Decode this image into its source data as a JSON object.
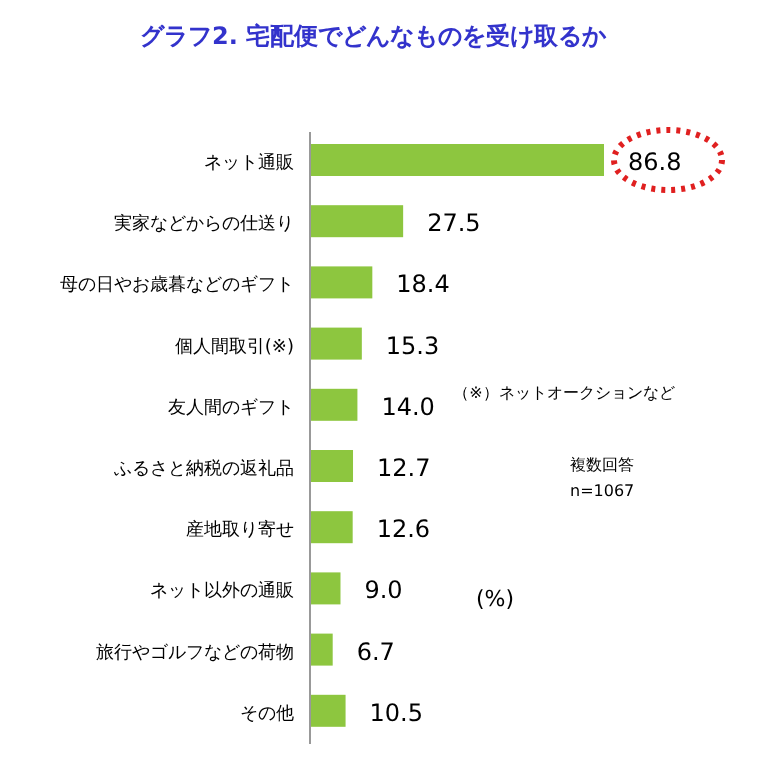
{
  "chart_data": {
    "type": "bar",
    "orientation": "horizontal",
    "title": "グラフ2. 宅配便でどんなものを受け取るか",
    "categories": [
      "ネット通販",
      "実家などからの仕送り",
      "母の日やお歳暮などのギフト",
      "個人間取引(※)",
      "友人間のギフト",
      "ふるさと納税の返礼品",
      "産地取り寄せ",
      "ネット以外の通販",
      "旅行やゴルフなどの荷物",
      "その他"
    ],
    "values": [
      86.8,
      27.5,
      18.4,
      15.3,
      14.0,
      12.7,
      12.6,
      9.0,
      6.7,
      10.5
    ],
    "color": "#8dc63f",
    "value_labels": [
      "86.8",
      "27.5",
      "18.4",
      "15.3",
      "14.0",
      "12.7",
      "12.6",
      "9.0",
      "6.7",
      "10.5"
    ],
    "annotations": [
      "（※）ネットオークションなど",
      "複数回答",
      "n=1067",
      "(%)"
    ]
  }
}
